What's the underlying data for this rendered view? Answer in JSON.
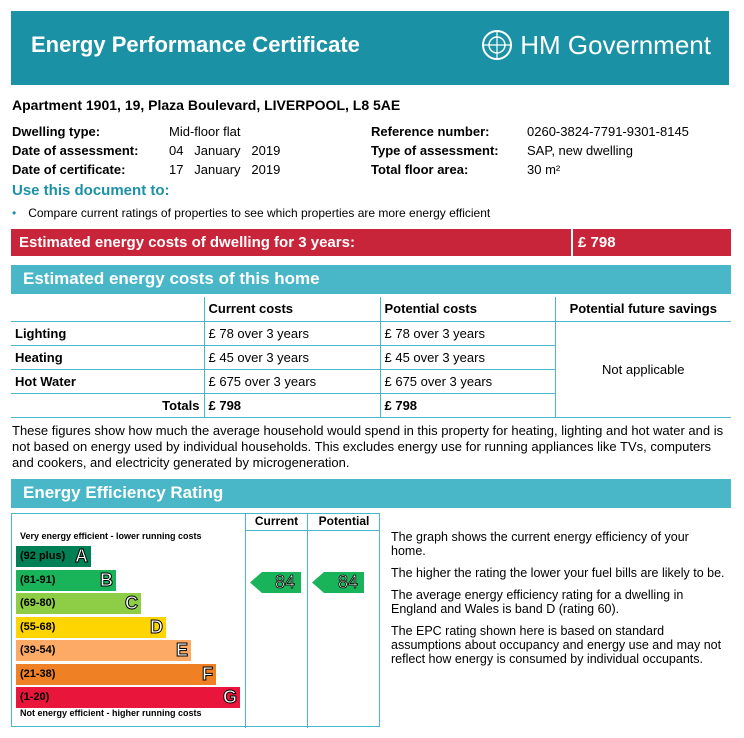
{
  "header": {
    "title": "Energy Performance Certificate",
    "brand": "HM Government"
  },
  "address": "Apartment 1901, 19, Plaza Boulevard, LIVERPOOL, L8 5AE",
  "left_info": [
    {
      "key": "Dwelling type:",
      "value": "Mid-floor flat"
    },
    {
      "key": "Date of assessment:",
      "value": "04   January   2019"
    },
    {
      "key": "Date of certificate:",
      "value": "17   January   2019"
    }
  ],
  "right_info": [
    {
      "key": "Reference number:",
      "value": "0260-3824-7791-9301-8145"
    },
    {
      "key": "Type of assessment:",
      "value": "SAP, new dwelling"
    },
    {
      "key": "Total floor area:",
      "value": "30 m²"
    }
  ],
  "use": {
    "title": "Use this document to:",
    "bullet": "Compare current ratings of properties to see which properties are more energy efficient"
  },
  "cost_bar": {
    "label": "Estimated energy costs of dwelling for 3 years:",
    "value": "£ 798"
  },
  "costs_section": {
    "title": "Estimated energy costs of this home",
    "headers": [
      "Current costs",
      "Potential costs",
      "Potential future savings"
    ],
    "rows": [
      {
        "label": "Lighting",
        "current": "£ 78 over 3 years",
        "potential": "£ 78 over 3 years"
      },
      {
        "label": "Heating",
        "current": "£ 45 over 3 years",
        "potential": "£ 45 over 3 years"
      },
      {
        "label": "Hot Water",
        "current": "£ 675 over 3 years",
        "potential": "£ 675 over 3 years"
      }
    ],
    "totals": {
      "label": "Totals",
      "current": "£ 798",
      "potential": "£ 798"
    },
    "savings": "Not applicable"
  },
  "note": "These figures show how much the average household would spend in this property for heating, lighting and hot water and is not based on energy used by individual households. This excludes energy use for running appliances like TVs, computers and cookers, and electricity generated by microgeneration.",
  "rating": {
    "title": "Energy Efficiency Rating",
    "top_label": "Very energy efficient - lower running costs",
    "bottom_label": "Not energy efficient - higher running costs",
    "col_current": "Current",
    "col_potential": "Potential",
    "current_value": "84",
    "potential_value": "84",
    "bands": [
      {
        "range": "(92 plus)",
        "letter": "A",
        "color": "#008054"
      },
      {
        "range": "(81-91)",
        "letter": "B",
        "color": "#19b459"
      },
      {
        "range": "(69-80)",
        "letter": "C",
        "color": "#8dce46"
      },
      {
        "range": "(55-68)",
        "letter": "D",
        "color": "#ffd500"
      },
      {
        "range": "(39-54)",
        "letter": "E",
        "color": "#fcaa65"
      },
      {
        "range": "(21-38)",
        "letter": "F",
        "color": "#ef8023"
      },
      {
        "range": "(1-20)",
        "letter": "G",
        "color": "#e9153b"
      }
    ]
  },
  "description": [
    "The graph shows the current energy efficiency of your home.",
    "The higher the rating the lower your fuel bills are likely to be.",
    "The average energy efficiency rating for a dwelling in England and Wales is band D (rating 60).",
    "The EPC rating shown here is based on standard assumptions about occupancy and energy use and may not reflect how energy is consumed by individual occupants."
  ]
}
